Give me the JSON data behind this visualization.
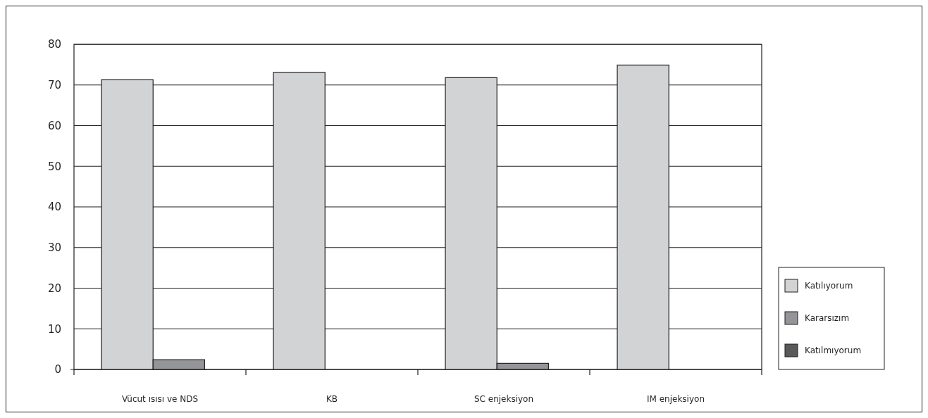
{
  "chart_data": {
    "type": "bar",
    "categories": [
      "Vücut ısısı ve NDS",
      "KB",
      "SC enjeksiyon",
      "IM enjeksiyon"
    ],
    "series": [
      {
        "name": "Katılıyorum",
        "color": "#d1d3d4",
        "values": [
          71.3,
          73.1,
          71.8,
          74.9
        ]
      },
      {
        "name": "Kararsızım",
        "color": "#939598",
        "values": [
          2.4,
          0,
          1.5,
          0
        ]
      },
      {
        "name": "Katılmıyorum",
        "color": "#58595b",
        "values": [
          0,
          0,
          0,
          0
        ]
      }
    ],
    "ylim": [
      0,
      80
    ],
    "yticks": [
      0,
      10,
      20,
      30,
      40,
      50,
      60,
      70,
      80
    ],
    "grid": "y",
    "legend": "right"
  }
}
